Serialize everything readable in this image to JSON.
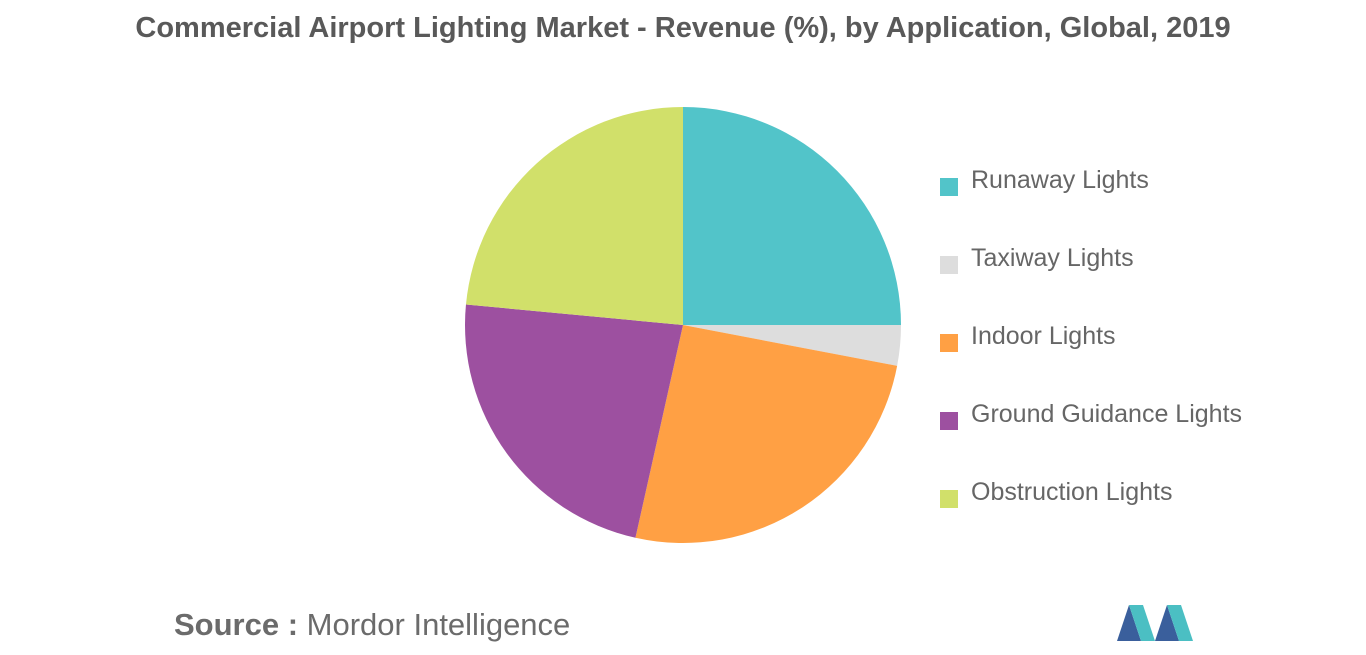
{
  "title": "Commercial Airport Lighting Market - Revenue (%), by Application, Global, 2019",
  "source": {
    "label": "Source :",
    "name": "Mordor Intelligence"
  },
  "chart_data": {
    "type": "pie",
    "title": "Commercial Airport Lighting Market - Revenue (%), by Application, Global, 2019",
    "start_angle": "12 o'clock",
    "direction": "clockwise",
    "legend_position": "right",
    "slices": [
      {
        "label": "Runaway Lights",
        "value": 25.0,
        "color": "#52c4c9"
      },
      {
        "label": "Taxiway Lights",
        "value": 3.0,
        "color": "#dddddd"
      },
      {
        "label": "Indoor Lights",
        "value": 25.5,
        "color": "#ffa044"
      },
      {
        "label": "Ground Guidance Lights",
        "value": 23.0,
        "color": "#9d50a0"
      },
      {
        "label": "Obstruction Lights",
        "value": 23.5,
        "color": "#d1e06a"
      }
    ]
  },
  "logo": {
    "name": "mordor-intelligence-logo",
    "colors": [
      "#3a5f9c",
      "#4bbfc3"
    ]
  }
}
